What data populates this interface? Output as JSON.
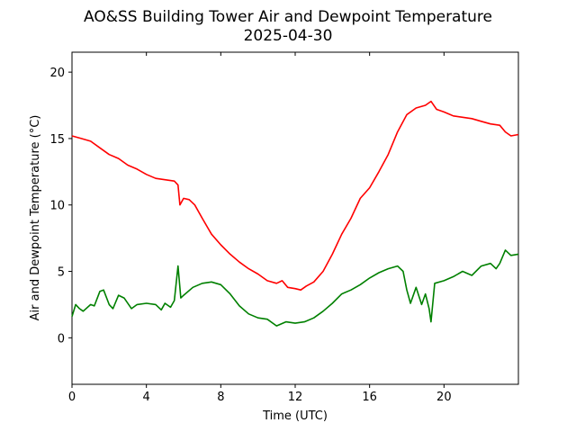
{
  "chart_data": {
    "type": "line",
    "title": "AO&SS Building Tower Air and Dewpoint Temperature",
    "subtitle": "2025-04-30",
    "xlabel": "Time (UTC)",
    "ylabel": "Air and Dewpoint Temperature (°C)",
    "xlim": [
      0,
      24
    ],
    "ylim": [
      -3.5,
      21.5
    ],
    "xticks": [
      0,
      4,
      8,
      12,
      16,
      20
    ],
    "yticks": [
      0,
      5,
      10,
      15,
      20
    ],
    "grid": false,
    "legend": "none",
    "series": [
      {
        "color": "#ff0000",
        "x": [
          0,
          0.5,
          1,
          1.5,
          2,
          2.5,
          3,
          3.5,
          4,
          4.5,
          5,
          5.5,
          5.7,
          5.8,
          6,
          6.3,
          6.6,
          7,
          7.5,
          8,
          8.5,
          9,
          9.5,
          10,
          10.5,
          11,
          11.3,
          11.6,
          12,
          12.3,
          12.6,
          13,
          13.5,
          14,
          14.5,
          15,
          15.5,
          16,
          16.5,
          17,
          17.5,
          18,
          18.5,
          19,
          19.3,
          19.6,
          20,
          20.5,
          21,
          21.5,
          22,
          22.5,
          23,
          23.3,
          23.6,
          24
        ],
        "y": [
          15.2,
          15.0,
          14.8,
          14.3,
          13.8,
          13.5,
          13.0,
          12.7,
          12.3,
          12.0,
          11.9,
          11.8,
          11.5,
          10.0,
          10.5,
          10.4,
          10.0,
          9.0,
          7.8,
          7.0,
          6.3,
          5.7,
          5.2,
          4.8,
          4.3,
          4.1,
          4.3,
          3.8,
          3.7,
          3.6,
          3.9,
          4.2,
          5.0,
          6.3,
          7.8,
          9.0,
          10.5,
          11.3,
          12.5,
          13.8,
          15.5,
          16.8,
          17.3,
          17.5,
          17.8,
          17.2,
          17.0,
          16.7,
          16.6,
          16.5,
          16.3,
          16.1,
          16.0,
          15.5,
          15.2,
          15.3
        ]
      },
      {
        "color": "#008000",
        "x": [
          0,
          0.2,
          0.4,
          0.6,
          1,
          1.2,
          1.5,
          1.7,
          2,
          2.2,
          2.5,
          2.8,
          3.2,
          3.5,
          4,
          4.5,
          4.8,
          5,
          5.3,
          5.5,
          5.7,
          5.85,
          6,
          6.5,
          7,
          7.5,
          8,
          8.5,
          9,
          9.5,
          10,
          10.5,
          11,
          11.5,
          12,
          12.5,
          13,
          13.5,
          14,
          14.5,
          15,
          15.5,
          16,
          16.5,
          17,
          17.5,
          17.8,
          18.0,
          18.2,
          18.5,
          18.8,
          19.0,
          19.2,
          19.3,
          19.5,
          20,
          20.5,
          21,
          21.5,
          22,
          22.5,
          22.8,
          23,
          23.3,
          23.6,
          24
        ],
        "y": [
          1.6,
          2.5,
          2.2,
          2.0,
          2.5,
          2.4,
          3.5,
          3.6,
          2.5,
          2.2,
          3.2,
          3.0,
          2.2,
          2.5,
          2.6,
          2.5,
          2.1,
          2.6,
          2.3,
          2.8,
          5.4,
          3.0,
          3.2,
          3.8,
          4.1,
          4.2,
          4.0,
          3.3,
          2.4,
          1.8,
          1.5,
          1.4,
          0.9,
          1.2,
          1.1,
          1.2,
          1.5,
          2.0,
          2.6,
          3.3,
          3.6,
          4.0,
          4.5,
          4.9,
          5.2,
          5.4,
          5.0,
          3.6,
          2.6,
          3.8,
          2.5,
          3.3,
          2.2,
          1.2,
          4.1,
          4.3,
          4.6,
          5.0,
          4.7,
          5.4,
          5.6,
          5.2,
          5.6,
          6.6,
          6.2,
          6.3
        ]
      }
    ]
  }
}
